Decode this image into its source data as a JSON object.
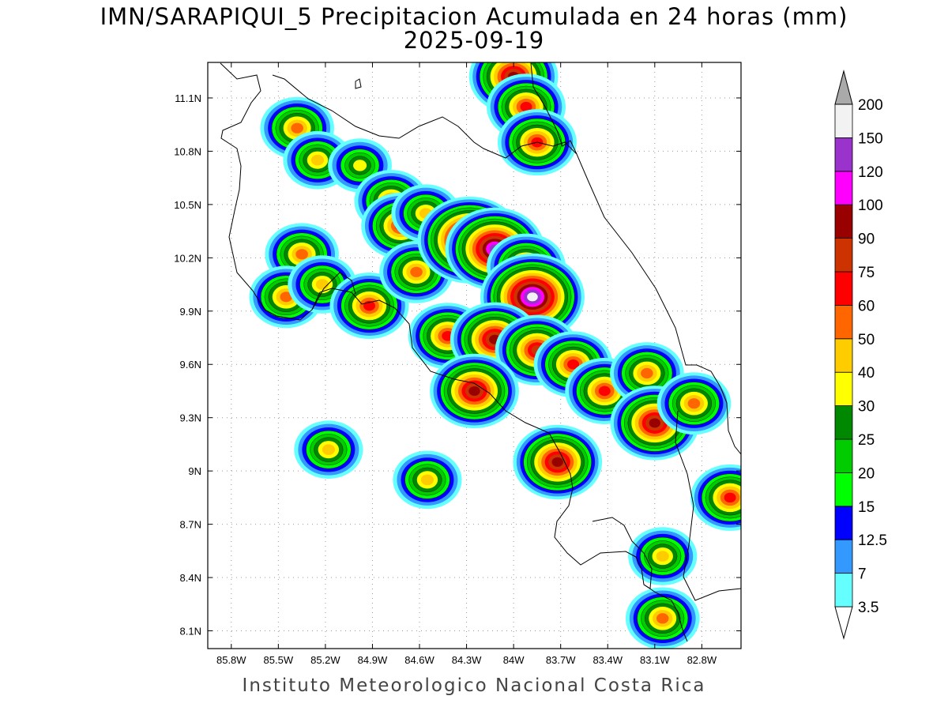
{
  "title": "IMN/SARAPIQUI_5 Precipitacion Acumulada en 24 horas (mm)",
  "date": "2025-09-19",
  "footer": "Instituto Meteorologico Nacional Costa Rica",
  "chart_data": {
    "type": "heatmap",
    "variable": "Precipitacion Acumulada en 24 horas (mm)",
    "xlim": [
      -85.95,
      -82.55
    ],
    "ylim": [
      8.0,
      11.3
    ],
    "x_ticks": [
      "85.8W",
      "85.5W",
      "85.2W",
      "84.9W",
      "84.6W",
      "84.3W",
      "84W",
      "83.7W",
      "83.4W",
      "83.1W",
      "82.8W"
    ],
    "x_tick_values": [
      -85.8,
      -85.5,
      -85.2,
      -84.9,
      -84.6,
      -84.3,
      -84.0,
      -83.7,
      -83.4,
      -83.1,
      -82.8
    ],
    "y_ticks": [
      "11.1N",
      "10.8N",
      "10.5N",
      "10.2N",
      "9.9N",
      "9.6N",
      "9.3N",
      "9N",
      "8.7N",
      "8.4N",
      "8.1N"
    ],
    "y_tick_values": [
      11.1,
      10.8,
      10.5,
      10.2,
      9.9,
      9.6,
      9.3,
      9.0,
      8.7,
      8.4,
      8.1
    ],
    "grid": true,
    "legend": {
      "placement": "right",
      "levels": [
        "3.5",
        "7",
        "12.5",
        "15",
        "20",
        "25",
        "30",
        "40",
        "50",
        "60",
        "75",
        "90",
        "100",
        "120",
        "150",
        "200"
      ],
      "colors": [
        "#66ffff",
        "#3399ff",
        "#0000ff",
        "#00ff00",
        "#00cc00",
        "#008800",
        "#ffff00",
        "#ffcc00",
        "#ff6600",
        "#ff0000",
        "#cc3300",
        "#990000",
        "#ff00ff",
        "#9933cc",
        "#f2f2f2",
        "#aaaaaa"
      ]
    },
    "precip_cells": [
      {
        "lon": -85.38,
        "lat": 10.93,
        "mm": 50
      },
      {
        "lon": -85.25,
        "lat": 10.75,
        "mm": 40
      },
      {
        "lon": -84.98,
        "lat": 10.72,
        "mm": 30
      },
      {
        "lon": -84.78,
        "lat": 10.52,
        "mm": 50
      },
      {
        "lon": -84.72,
        "lat": 10.38,
        "mm": 60
      },
      {
        "lon": -84.56,
        "lat": 10.45,
        "mm": 40
      },
      {
        "lon": -85.35,
        "lat": 10.22,
        "mm": 50
      },
      {
        "lon": -85.45,
        "lat": 9.98,
        "mm": 50
      },
      {
        "lon": -85.22,
        "lat": 10.05,
        "mm": 40
      },
      {
        "lon": -84.92,
        "lat": 9.93,
        "mm": 60
      },
      {
        "lon": -84.62,
        "lat": 10.12,
        "mm": 50
      },
      {
        "lon": -84.28,
        "lat": 10.3,
        "mm": 150
      },
      {
        "lon": -84.12,
        "lat": 10.25,
        "mm": 120
      },
      {
        "lon": -83.92,
        "lat": 10.15,
        "mm": 60
      },
      {
        "lon": -83.88,
        "lat": 9.98,
        "mm": 150
      },
      {
        "lon": -84.42,
        "lat": 9.76,
        "mm": 60
      },
      {
        "lon": -84.12,
        "lat": 9.74,
        "mm": 90
      },
      {
        "lon": -83.85,
        "lat": 9.68,
        "mm": 75
      },
      {
        "lon": -83.62,
        "lat": 9.6,
        "mm": 60
      },
      {
        "lon": -83.42,
        "lat": 9.45,
        "mm": 60
      },
      {
        "lon": -83.15,
        "lat": 9.55,
        "mm": 50
      },
      {
        "lon": -84.25,
        "lat": 9.45,
        "mm": 90
      },
      {
        "lon": -83.72,
        "lat": 9.05,
        "mm": 90
      },
      {
        "lon": -83.1,
        "lat": 9.27,
        "mm": 90
      },
      {
        "lon": -82.85,
        "lat": 9.38,
        "mm": 50
      },
      {
        "lon": -82.62,
        "lat": 8.85,
        "mm": 60
      },
      {
        "lon": -85.18,
        "lat": 9.12,
        "mm": 40
      },
      {
        "lon": -84.55,
        "lat": 8.95,
        "mm": 40
      },
      {
        "lon": -83.05,
        "lat": 8.52,
        "mm": 40
      },
      {
        "lon": -83.05,
        "lat": 8.17,
        "mm": 50
      },
      {
        "lon": -84.0,
        "lat": 11.22,
        "mm": 90
      },
      {
        "lon": -83.92,
        "lat": 11.05,
        "mm": 60
      },
      {
        "lon": -83.85,
        "lat": 10.85,
        "mm": 60
      }
    ]
  }
}
